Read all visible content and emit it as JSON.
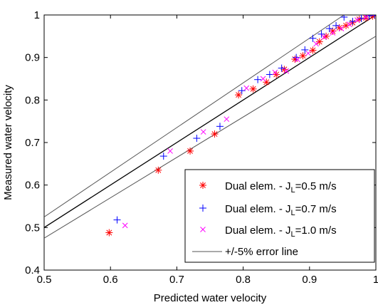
{
  "chart_data": {
    "type": "scatter",
    "title": "",
    "xlabel": "Predicted water velocity",
    "ylabel": "Measured water velocity",
    "xlim": [
      0.5,
      1.0
    ],
    "ylim": [
      0.4,
      1.0
    ],
    "xticks": [
      0.5,
      0.6,
      0.7,
      0.8,
      0.9,
      1.0
    ],
    "xtick_labels": [
      "0.5",
      "0.6",
      "0.7",
      "0.8",
      "0.9",
      "1"
    ],
    "yticks": [
      0.4,
      0.5,
      0.6,
      0.7,
      0.8,
      0.9,
      1.0
    ],
    "ytick_labels": [
      "0.4",
      "0.5",
      "0.6",
      "0.7",
      "0.8",
      "0.9",
      "1"
    ],
    "grid": false,
    "legend_position": "bottom-right",
    "series": [
      {
        "name": "Dual elem. - J_L=0.5 m/s",
        "legend_main": "Dual elem. - J",
        "legend_sub": "L",
        "legend_tail": "=0.5 m/s",
        "marker": "asterisk",
        "color": "#ff0000",
        "x": [
          0.598,
          0.672,
          0.72,
          0.757,
          0.793,
          0.815,
          0.835,
          0.85,
          0.862,
          0.878,
          0.89,
          0.905,
          0.915,
          0.925,
          0.935,
          0.945,
          0.955,
          0.965,
          0.975,
          0.985,
          0.995
        ],
        "y": [
          0.488,
          0.635,
          0.68,
          0.72,
          0.812,
          0.826,
          0.842,
          0.86,
          0.872,
          0.896,
          0.904,
          0.917,
          0.937,
          0.95,
          0.962,
          0.97,
          0.975,
          0.982,
          0.99,
          0.993,
          0.997
        ]
      },
      {
        "name": "Dual elem. - J_L=0.7 m/s",
        "legend_main": "Dual elem. - J",
        "legend_sub": "L",
        "legend_tail": "=0.7 m/s",
        "marker": "plus",
        "color": "#0000ff",
        "x": [
          0.61,
          0.68,
          0.73,
          0.765,
          0.798,
          0.822,
          0.84,
          0.858,
          0.88,
          0.893,
          0.905,
          0.918,
          0.93,
          0.94,
          0.952,
          0.965,
          0.978,
          0.99,
          0.998
        ],
        "y": [
          0.518,
          0.668,
          0.71,
          0.738,
          0.822,
          0.848,
          0.86,
          0.875,
          0.9,
          0.918,
          0.945,
          0.955,
          0.968,
          0.975,
          0.995,
          0.985,
          0.992,
          0.998,
          1.0
        ]
      },
      {
        "name": "Dual elem. - J_L=1.0 m/s",
        "legend_main": "Dual elem. - J",
        "legend_sub": "L",
        "legend_tail": "=1.0 m/s",
        "marker": "x",
        "color": "#ff00ff",
        "x": [
          0.622,
          0.69,
          0.74,
          0.775,
          0.805,
          0.83,
          0.848,
          0.865,
          0.882,
          0.898,
          0.91,
          0.922,
          0.935,
          0.948,
          0.96,
          0.972,
          0.985
        ],
        "y": [
          0.505,
          0.68,
          0.725,
          0.755,
          0.828,
          0.85,
          0.865,
          0.868,
          0.895,
          0.91,
          0.932,
          0.948,
          0.958,
          0.968,
          0.978,
          0.988,
          0.995
        ]
      }
    ],
    "reference_lines": {
      "name": "+/-5% error line",
      "color": "#555555",
      "center": [
        [
          0.5,
          0.5
        ],
        [
          1.0,
          1.0
        ]
      ],
      "upper": [
        [
          0.5,
          0.525
        ],
        [
          0.952,
          1.0
        ]
      ],
      "lower": [
        [
          0.5,
          0.475
        ],
        [
          1.0,
          0.95
        ]
      ]
    }
  }
}
